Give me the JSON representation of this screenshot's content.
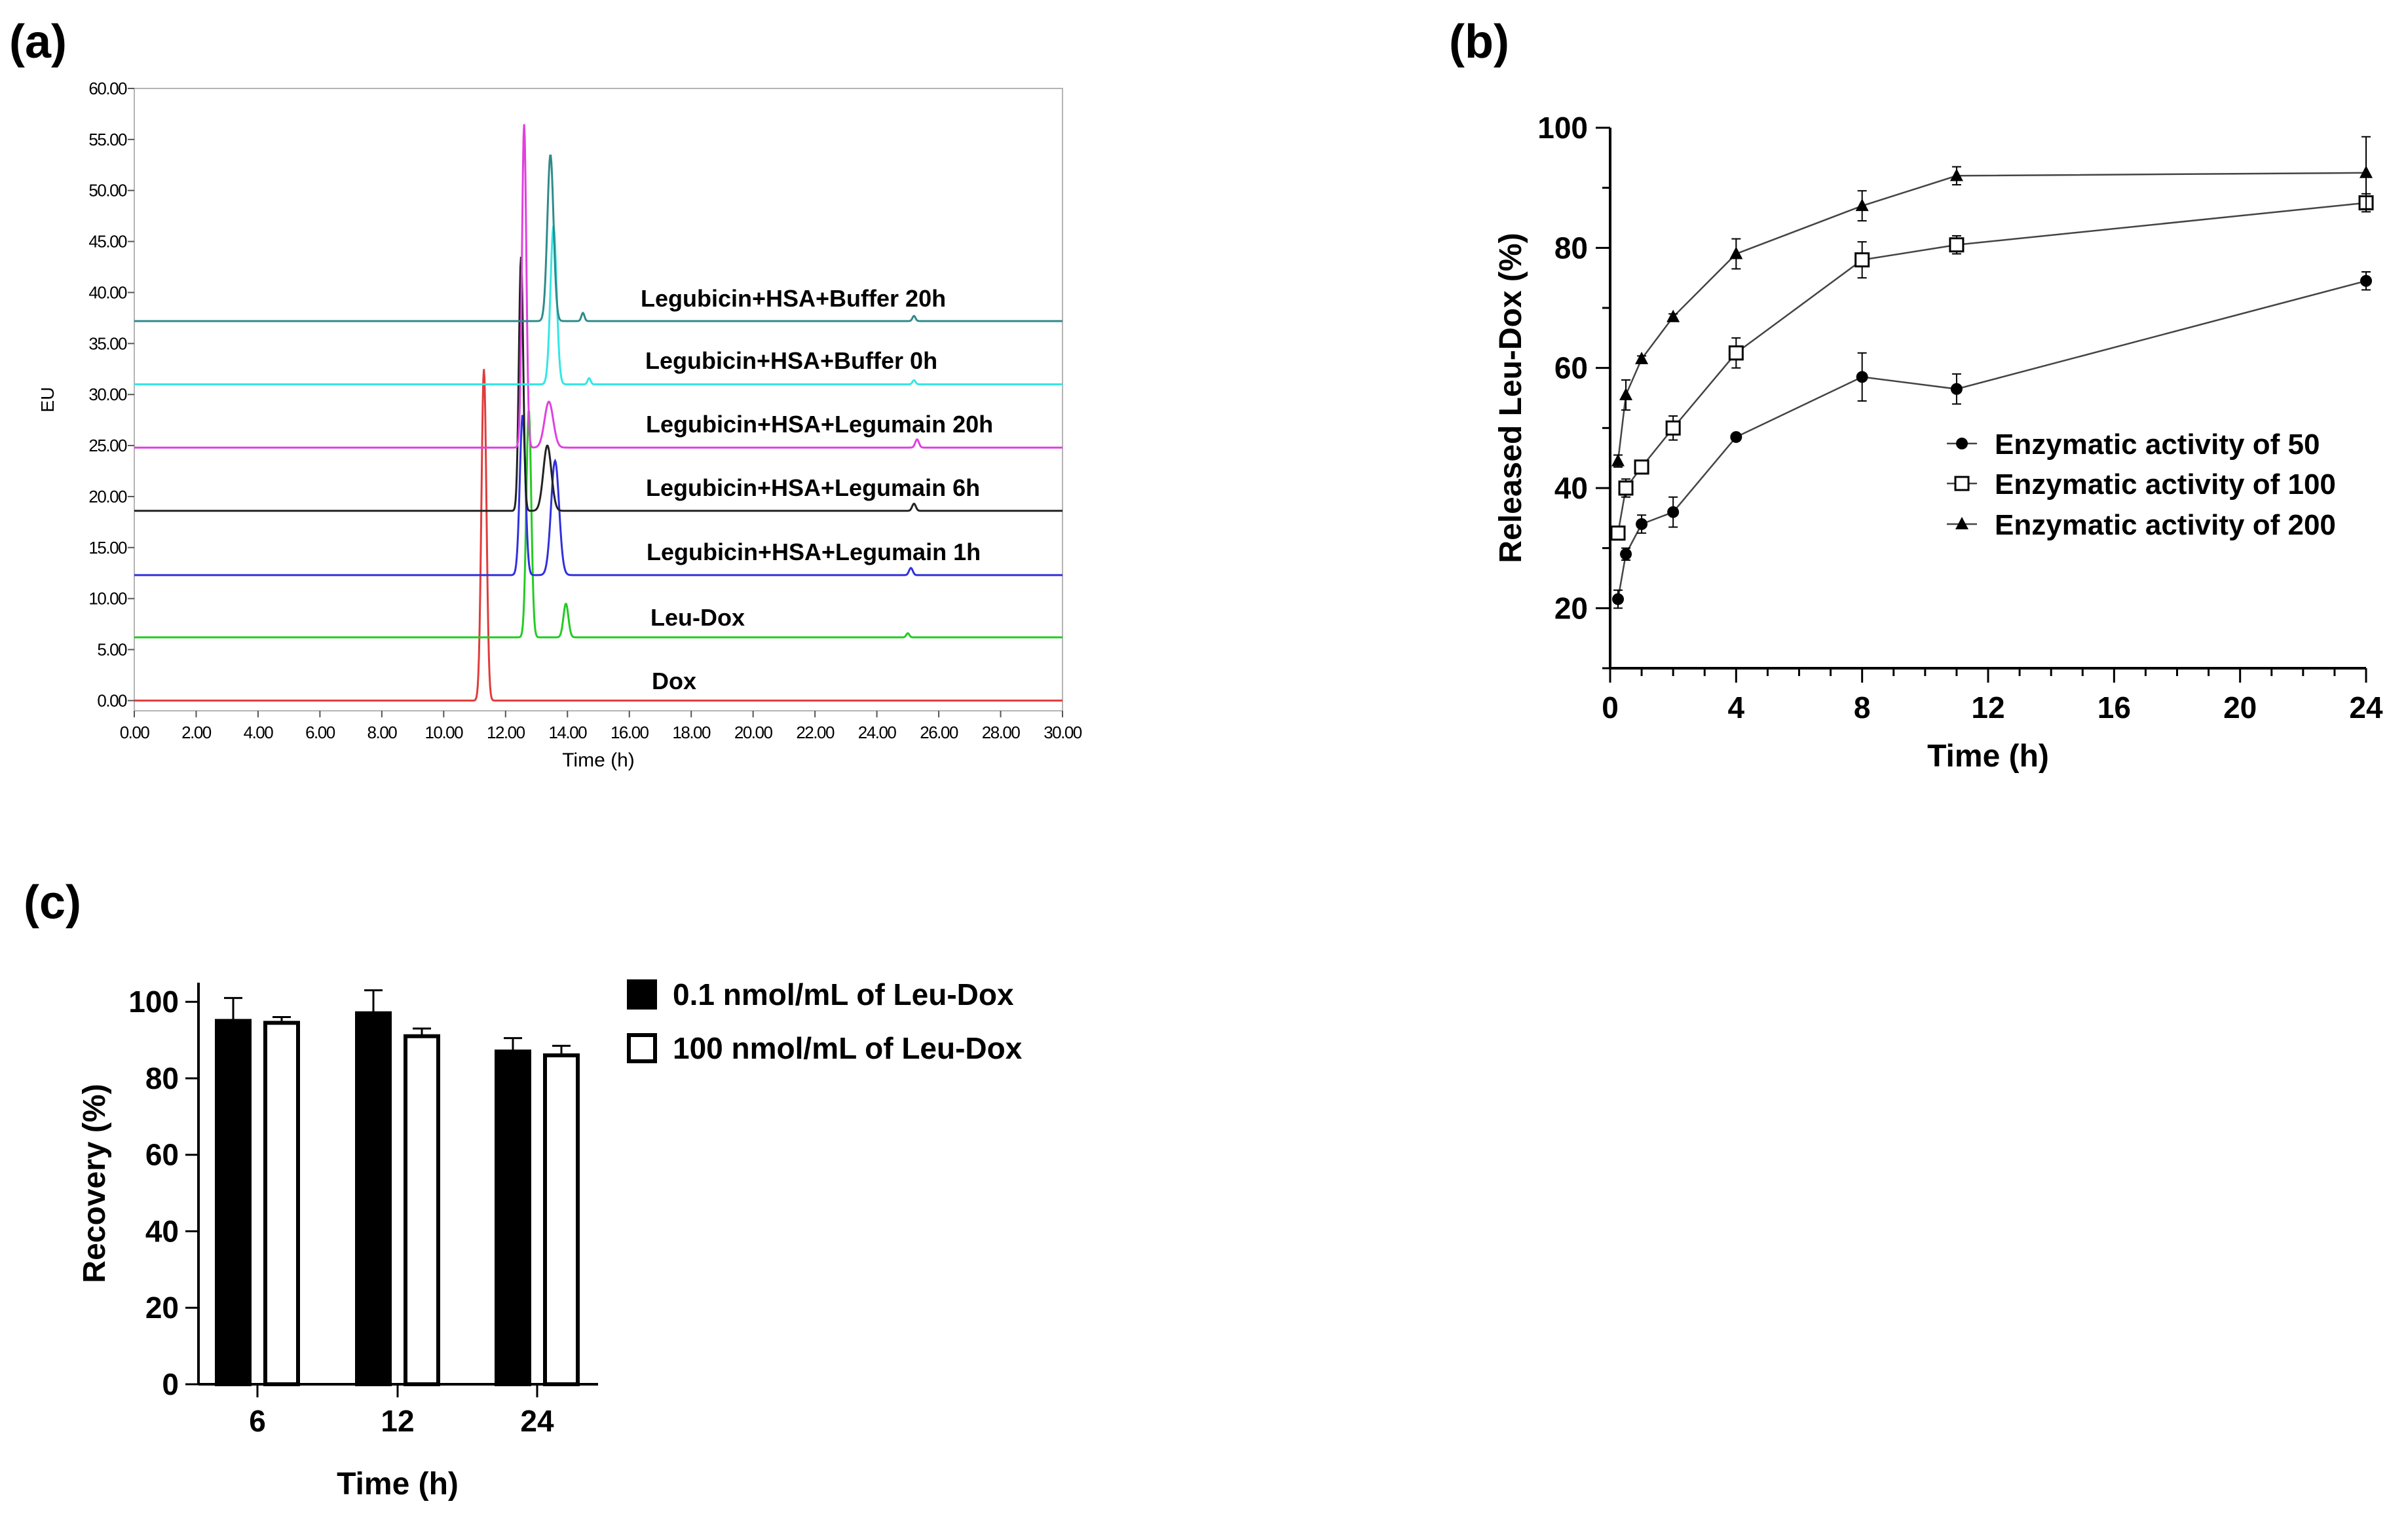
{
  "panels": {
    "a": {
      "label": "(a)"
    },
    "b": {
      "label": "(b)"
    },
    "c": {
      "label": "(c)"
    }
  },
  "chart_data": [
    {
      "id": "a",
      "type": "line",
      "title": "",
      "xlabel": "Time (h)",
      "ylabel": "EU",
      "xlim": [
        0,
        30
      ],
      "ylim": [
        -1,
        60
      ],
      "xticks": [
        "0.00",
        "2.00",
        "4.00",
        "6.00",
        "8.00",
        "10.00",
        "12.00",
        "14.00",
        "16.00",
        "18.00",
        "20.00",
        "22.00",
        "24.00",
        "26.00",
        "28.00",
        "30.00"
      ],
      "yticks": [
        "0.00",
        "5.00",
        "10.00",
        "15.00",
        "20.00",
        "25.00",
        "30.00",
        "35.00",
        "40.00",
        "45.00",
        "50.00",
        "55.00",
        "60.00"
      ],
      "grid": false,
      "series": [
        {
          "name": "Dox",
          "color": "#e03c3c",
          "baseline": 0,
          "peaks": [
            {
              "x": 11.3,
              "y": 32.5,
              "w": 0.08
            }
          ]
        },
        {
          "name": "Leu-Dox",
          "color": "#22cc22",
          "baseline": 6.2,
          "peaks": [
            {
              "x": 12.75,
              "y": 28.5,
              "w": 0.08
            },
            {
              "x": 13.95,
              "y": 9.5,
              "w": 0.08
            },
            {
              "x": 25.0,
              "y": 6.6,
              "w": 0.05
            }
          ]
        },
        {
          "name": "Legubicin+HSA+Legumain 1h",
          "color": "#3030dd",
          "baseline": 12.3,
          "peaks": [
            {
              "x": 12.55,
              "y": 28.0,
              "w": 0.09
            },
            {
              "x": 13.6,
              "y": 23.5,
              "w": 0.13
            },
            {
              "x": 25.1,
              "y": 13.0,
              "w": 0.06
            }
          ]
        },
        {
          "name": "Legubicin+HSA+Legumain 6h",
          "color": "#222222",
          "baseline": 18.6,
          "peaks": [
            {
              "x": 12.5,
              "y": 43.5,
              "w": 0.07
            },
            {
              "x": 13.35,
              "y": 25.0,
              "w": 0.13
            },
            {
              "x": 25.2,
              "y": 19.3,
              "w": 0.06
            }
          ]
        },
        {
          "name": "Legubicin+HSA+Legumain 20h",
          "color": "#e040e0",
          "baseline": 24.8,
          "peaks": [
            {
              "x": 12.6,
              "y": 56.5,
              "w": 0.07
            },
            {
              "x": 13.4,
              "y": 29.3,
              "w": 0.14
            },
            {
              "x": 25.3,
              "y": 25.6,
              "w": 0.06
            }
          ]
        },
        {
          "name": "Legubicin+HSA+Buffer 0h",
          "color": "#33e6e6",
          "baseline": 31.0,
          "peaks": [
            {
              "x": 13.55,
              "y": 46.5,
              "w": 0.1
            },
            {
              "x": 14.7,
              "y": 31.6,
              "w": 0.05
            },
            {
              "x": 25.2,
              "y": 31.4,
              "w": 0.05
            }
          ]
        },
        {
          "name": "Legubicin+HSA+Buffer 20h",
          "color": "#2e8b8b",
          "baseline": 37.2,
          "peaks": [
            {
              "x": 13.45,
              "y": 53.5,
              "w": 0.1
            },
            {
              "x": 14.5,
              "y": 38.0,
              "w": 0.05
            },
            {
              "x": 25.2,
              "y": 37.7,
              "w": 0.05
            }
          ]
        }
      ]
    },
    {
      "id": "b",
      "type": "line",
      "title": "",
      "xlabel": "Time (h)",
      "ylabel": "Released Leu-Dox (%)",
      "xlim": [
        0,
        24
      ],
      "ylim": [
        10,
        100
      ],
      "xticks": [
        0,
        4,
        8,
        12,
        16,
        20,
        24
      ],
      "yticks": [
        20,
        40,
        60,
        80,
        100
      ],
      "grid": false,
      "legend": "right",
      "series": [
        {
          "name": "Enzymatic activity of 50",
          "marker": "circle",
          "x": [
            0.25,
            0.5,
            1,
            2,
            4,
            8,
            11,
            24
          ],
          "y": [
            21.5,
            29,
            34,
            36,
            48.5,
            58.5,
            56.5,
            74.5
          ],
          "err": [
            1.5,
            1,
            1.5,
            2.5,
            0.5,
            4,
            2.5,
            1.5
          ]
        },
        {
          "name": "Enzymatic activity of 100",
          "marker": "square-open",
          "x": [
            0.25,
            0.5,
            1,
            2,
            4,
            8,
            11,
            24
          ],
          "y": [
            32.5,
            40,
            43.5,
            50,
            62.5,
            78,
            80.5,
            87.5
          ],
          "err": [
            1,
            1.5,
            1,
            2,
            2.5,
            3,
            1.5,
            1.5
          ]
        },
        {
          "name": "Enzymatic activity of 200",
          "marker": "triangle",
          "x": [
            0.25,
            0.5,
            1,
            2,
            4,
            8,
            11,
            24
          ],
          "y": [
            44.5,
            55.5,
            61.5,
            68.5,
            79,
            87,
            92,
            92.5
          ],
          "err": [
            1,
            2.5,
            0.5,
            0.5,
            2.5,
            2.5,
            1.5,
            6
          ]
        }
      ]
    },
    {
      "id": "c",
      "type": "bar",
      "title": "",
      "xlabel": "Time (h)",
      "ylabel": "Recovery (%)",
      "categories": [
        "6",
        "12",
        "24"
      ],
      "ylim": [
        0,
        105
      ],
      "yticks": [
        0,
        20,
        40,
        60,
        80,
        100
      ],
      "legend": "right",
      "series": [
        {
          "name": "0.1 nmol/mL of Leu-Dox",
          "fill": "#000000",
          "values": [
            95,
            97,
            87
          ],
          "err": [
            6,
            6,
            3.5
          ]
        },
        {
          "name": "100 nmol/mL of Leu-Dox",
          "fill": "#ffffff",
          "values": [
            94.5,
            91,
            86
          ],
          "err": [
            1.5,
            2,
            2.5
          ]
        }
      ]
    }
  ]
}
